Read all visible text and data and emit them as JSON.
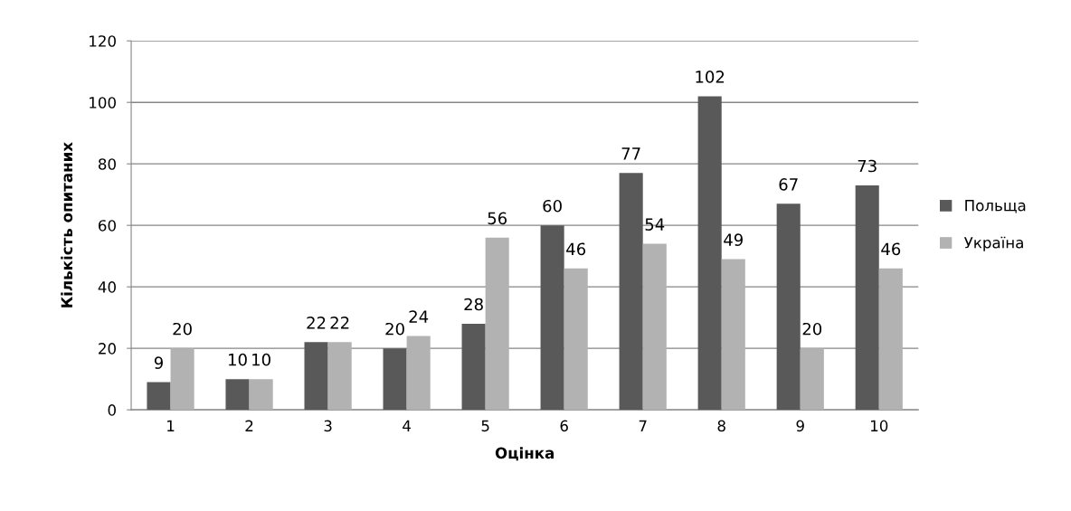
{
  "chart_data": {
    "type": "bar",
    "xlabel": "Оцінка",
    "ylabel": "Кількість опитаних",
    "categories": [
      "1",
      "2",
      "3",
      "4",
      "5",
      "6",
      "7",
      "8",
      "9",
      "10"
    ],
    "series": [
      {
        "name": "Польща",
        "color": "#595959",
        "values": [
          9,
          10,
          22,
          20,
          28,
          60,
          77,
          102,
          67,
          73
        ]
      },
      {
        "name": "Україна",
        "color": "#b2b2b2",
        "values": [
          20,
          10,
          22,
          24,
          56,
          46,
          54,
          49,
          20,
          46
        ]
      }
    ],
    "ylim": [
      0,
      120
    ],
    "yticks": [
      0,
      20,
      40,
      60,
      80,
      100,
      120
    ],
    "grid": "y",
    "legend": "right",
    "data_labels": true
  }
}
